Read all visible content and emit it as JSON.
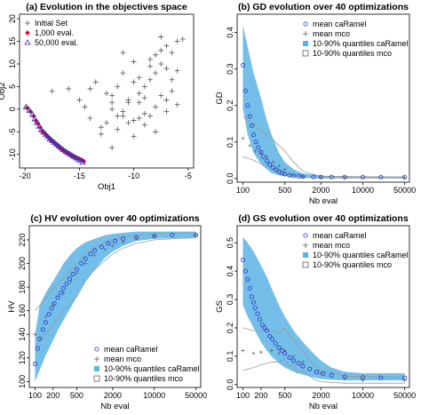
{
  "colors": {
    "band": "#5ab4e5",
    "mean_caramel": "#2233cc",
    "mco": "#666666",
    "init": "#555555",
    "eval1000": "#e8002a",
    "eval50000": "#3333bb"
  },
  "chart_data": [
    {
      "id": "a",
      "type": "scatter",
      "title": "(a) Evolution in the objectives space",
      "xlabel": "Obj1",
      "ylabel": "Obj2",
      "xlim": [
        -20.5,
        -4.5
      ],
      "ylim": [
        -13,
        21
      ],
      "xticks": [
        -20,
        -15,
        -10,
        -5
      ],
      "yticks": [
        -10,
        -5,
        0,
        5,
        10,
        15,
        20
      ],
      "legend_position": "top-left",
      "series": [
        {
          "name": "Initial Set",
          "marker": "plus",
          "x": [
            -17.5,
            -16.0,
            -14.0,
            -13.5,
            -12.5,
            -12.0,
            -11.5,
            -11.0,
            -10.5,
            -10.0,
            -9.5,
            -9.0,
            -8.5,
            -8.0,
            -7.5,
            -7.0,
            -6.5,
            -6.0,
            -5.5,
            -9.0,
            -8.0,
            -7.0,
            -6.5,
            -10.0,
            -11.0,
            -12.0,
            -9.5,
            -8.5,
            -7.5,
            -6.0,
            -13.0,
            -12.5,
            -11.5,
            -10.5,
            -9.0,
            -8.0,
            -7.0,
            -8.5,
            -10.0,
            -11.0,
            -9.5,
            -7.5,
            -6.5,
            -12.0,
            -14.5,
            -15.0,
            -10.0,
            -9.0,
            -8.0,
            -7.0,
            -6.0,
            -8.5,
            -9.5,
            -10.5,
            -11.5,
            -12.0,
            -13.0,
            -14.0,
            -11.0,
            -7.5
          ],
          "y": [
            4.0,
            4.5,
            4.5,
            6.0,
            3.5,
            1.5,
            5.0,
            -0.5,
            2.0,
            6.0,
            3.5,
            2.5,
            9.5,
            8.0,
            10.0,
            9.0,
            12.5,
            15.0,
            15.5,
            -1.0,
            0.5,
            2.0,
            4.0,
            -2.5,
            -1.5,
            0.0,
            7.0,
            11.0,
            13.0,
            8.5,
            -4.0,
            -3.0,
            -4.5,
            1.5,
            5.0,
            12.0,
            14.0,
            6.5,
            10.5,
            8.0,
            -2.0,
            3.0,
            6.5,
            3.0,
            0.5,
            2.0,
            -6.0,
            -3.5,
            -5.0,
            -0.5,
            1.0,
            -1.5,
            1.5,
            -3.0,
            -1.5,
            -8.5,
            -5.5,
            -2.0,
            12.5,
            16.0
          ]
        },
        {
          "name": "1,000 eval.",
          "marker": "diamond",
          "x": [
            -19.8,
            -19.5,
            -19.2,
            -19.0,
            -18.8,
            -18.6,
            -18.4,
            -18.2,
            -18.0,
            -17.8,
            -17.6,
            -17.4,
            -17.2,
            -17.0,
            -16.8,
            -16.6,
            -16.4,
            -16.2,
            -16.0,
            -15.9,
            -15.8,
            -15.6,
            -15.4,
            -15.2,
            -15.0,
            -14.8,
            -14.6
          ],
          "y": [
            0.3,
            -0.5,
            -1.5,
            -2.5,
            -3.2,
            -4.0,
            -4.8,
            -5.3,
            -5.8,
            -6.3,
            -6.8,
            -7.2,
            -7.6,
            -8.0,
            -8.4,
            -8.8,
            -9.2,
            -9.5,
            -9.8,
            -10.0,
            -10.2,
            -10.4,
            -10.6,
            -10.8,
            -11.0,
            -11.2,
            -11.5
          ]
        },
        {
          "name": "50,000 eval.",
          "marker": "triangle",
          "x": [
            -19.9,
            -19.6,
            -19.3,
            -19.1,
            -18.9,
            -18.7,
            -18.5,
            -18.3,
            -18.1,
            -17.9,
            -17.7,
            -17.5,
            -17.3,
            -17.1,
            -16.9,
            -16.7,
            -16.5,
            -16.3,
            -16.1,
            -15.9,
            -15.7,
            -15.5,
            -15.3,
            -15.1,
            -14.9,
            -14.7
          ],
          "y": [
            0.5,
            -0.3,
            -1.2,
            -2.2,
            -3.0,
            -3.8,
            -4.6,
            -5.1,
            -5.6,
            -6.1,
            -6.6,
            -7.0,
            -7.4,
            -7.8,
            -8.2,
            -8.6,
            -9.0,
            -9.3,
            -9.6,
            -9.9,
            -10.2,
            -10.5,
            -10.8,
            -11.1,
            -11.4,
            -11.8
          ]
        }
      ]
    },
    {
      "id": "b",
      "type": "line",
      "title": "(b) GD evolution over 40 optimizations",
      "xlabel": "Nb eval",
      "ylabel": "GD",
      "xscale": "log",
      "xlim": [
        80,
        60000
      ],
      "ylim": [
        -0.01,
        0.45
      ],
      "xticks": [
        100,
        500,
        2000,
        10000,
        50000
      ],
      "yticks": [
        0.0,
        0.1,
        0.2,
        0.3,
        0.4
      ],
      "legend_position": "top-right",
      "series": [
        {
          "name": "mean caRamel",
          "style": "circles",
          "x": [
            100,
            110,
            120,
            130,
            140,
            150,
            165,
            180,
            200,
            220,
            250,
            280,
            320,
            360,
            400,
            450,
            500,
            600,
            700,
            850,
            1000,
            1500,
            2000,
            3000,
            5000,
            10000,
            20000,
            50000
          ],
          "y": [
            0.31,
            0.24,
            0.2,
            0.17,
            0.145,
            0.12,
            0.1,
            0.085,
            0.072,
            0.06,
            0.048,
            0.038,
            0.03,
            0.024,
            0.019,
            0.015,
            0.012,
            0.009,
            0.007,
            0.006,
            0.005,
            0.004,
            0.004,
            0.004,
            0.004,
            0.004,
            0.004,
            0.004
          ]
        },
        {
          "name": "mean mco",
          "style": "plus",
          "x": [
            100,
            130,
            160,
            200,
            250,
            320,
            400,
            500,
            700,
            1000,
            2000,
            5000,
            50000
          ],
          "y": [
            0.11,
            0.09,
            0.075,
            0.07,
            0.06,
            0.045,
            0.035,
            0.025,
            0.012,
            0.006,
            0.003,
            0.002,
            0.002
          ]
        },
        {
          "name": "10-90% quantiles caRamel",
          "style": "band",
          "x": [
            100,
            120,
            150,
            200,
            250,
            300,
            400,
            500,
            700,
            1000,
            2000,
            5000,
            10000,
            50000
          ],
          "low": [
            0.19,
            0.12,
            0.07,
            0.04,
            0.025,
            0.015,
            0.009,
            0.006,
            0.004,
            0.003,
            0.002,
            0.002,
            0.002,
            0.002
          ],
          "high": [
            0.42,
            0.36,
            0.29,
            0.22,
            0.16,
            0.12,
            0.07,
            0.045,
            0.025,
            0.014,
            0.008,
            0.006,
            0.005,
            0.005
          ]
        },
        {
          "name": "10-90% quantiles mco",
          "style": "outline",
          "x": [
            100,
            150,
            200,
            300,
            400,
            500,
            700,
            1000,
            2000,
            50000
          ],
          "low": [
            0.06,
            0.05,
            0.04,
            0.03,
            0.02,
            0.012,
            0.006,
            0.003,
            0.001,
            0.001
          ],
          "high": [
            0.17,
            0.15,
            0.13,
            0.11,
            0.09,
            0.075,
            0.045,
            0.02,
            0.006,
            0.004
          ]
        }
      ]
    },
    {
      "id": "c",
      "type": "line",
      "title": "(c) HV evolution over 40 optimizations",
      "xlabel": "Nb eval",
      "ylabel": "HV",
      "xscale": "log",
      "xlim": [
        80,
        60000
      ],
      "ylim": [
        95,
        232
      ],
      "xticks": [
        100,
        200,
        500,
        2000,
        10000,
        50000
      ],
      "yticks": [
        100,
        120,
        140,
        160,
        180,
        200,
        220
      ],
      "legend_position": "bottom-right",
      "series": [
        {
          "name": "mean caRamel",
          "style": "circles",
          "x": [
            100,
            110,
            120,
            135,
            150,
            170,
            190,
            210,
            240,
            270,
            300,
            340,
            380,
            430,
            500,
            600,
            700,
            850,
            1000,
            1300,
            1700,
            2200,
            3000,
            5000,
            10000,
            20000,
            50000
          ],
          "y": [
            115,
            128,
            136,
            144,
            150,
            157,
            162,
            166,
            171,
            175,
            179,
            183,
            187,
            191,
            195,
            200,
            204,
            208,
            211,
            214,
            217,
            219,
            221,
            222,
            223,
            224,
            224
          ]
        },
        {
          "name": "mean mco",
          "style": "plus",
          "x": [
            100,
            150,
            200,
            300,
            400,
            500,
            700,
            1000,
            1500,
            2000,
            3000,
            5000,
            10000,
            50000
          ],
          "y": [
            140,
            155,
            165,
            175,
            185,
            192,
            200,
            207,
            212,
            215,
            218,
            221,
            223,
            224
          ]
        },
        {
          "name": "10-90% quantiles caRamel",
          "style": "band",
          "x": [
            100,
            120,
            150,
            200,
            250,
            300,
            400,
            500,
            700,
            1000,
            1500,
            2000,
            3000,
            5000,
            10000,
            50000
          ],
          "low": [
            100,
            110,
            122,
            135,
            145,
            152,
            163,
            172,
            185,
            195,
            205,
            210,
            215,
            219,
            221,
            222
          ],
          "high": [
            140,
            165,
            175,
            185,
            193,
            200,
            208,
            213,
            218,
            221,
            224,
            225,
            226,
            227,
            227,
            227
          ]
        },
        {
          "name": "10-90% quantiles mco",
          "style": "outline",
          "x": [
            100,
            150,
            200,
            300,
            500,
            700,
            1000,
            2000,
            3000,
            5000,
            10000,
            50000
          ],
          "low": [
            130,
            140,
            148,
            160,
            172,
            185,
            195,
            208,
            213,
            217,
            220,
            222
          ],
          "high": [
            160,
            170,
            178,
            188,
            200,
            208,
            214,
            220,
            222,
            224,
            225,
            226
          ]
        }
      ]
    },
    {
      "id": "d",
      "type": "line",
      "title": "(d) GS evolution over 40 optimizations",
      "xlabel": "Nb eval",
      "ylabel": "GS",
      "xscale": "log",
      "xlim": [
        80,
        60000
      ],
      "ylim": [
        -0.01,
        0.56
      ],
      "xticks": [
        100,
        200,
        500,
        2000,
        10000,
        50000
      ],
      "yticks": [
        0.0,
        0.1,
        0.2,
        0.3,
        0.4,
        0.5
      ],
      "legend_position": "top-right",
      "series": [
        {
          "name": "mean caRamel",
          "style": "circles",
          "x": [
            100,
            110,
            120,
            130,
            140,
            150,
            160,
            175,
            190,
            210,
            230,
            250,
            280,
            310,
            350,
            400,
            450,
            500,
            600,
            700,
            850,
            1000,
            1300,
            1700,
            2200,
            3000,
            5000,
            10000,
            20000,
            50000
          ],
          "y": [
            0.44,
            0.4,
            0.37,
            0.34,
            0.31,
            0.29,
            0.27,
            0.25,
            0.23,
            0.21,
            0.2,
            0.19,
            0.17,
            0.16,
            0.145,
            0.13,
            0.12,
            0.11,
            0.095,
            0.085,
            0.075,
            0.065,
            0.055,
            0.045,
            0.038,
            0.033,
            0.028,
            0.025,
            0.024,
            0.024
          ]
        },
        {
          "name": "mean mco",
          "style": "plus",
          "x": [
            100,
            150,
            200,
            300,
            400,
            500,
            700,
            1000,
            2000,
            5000,
            10000,
            50000
          ],
          "y": [
            0.12,
            0.11,
            0.115,
            0.12,
            0.11,
            0.12,
            0.1,
            0.08,
            0.04,
            0.02,
            0.015,
            0.015
          ]
        },
        {
          "name": "10-90% quantiles caRamel",
          "style": "band",
          "x": [
            100,
            120,
            150,
            200,
            250,
            300,
            400,
            500,
            700,
            1000,
            1500,
            2000,
            3000,
            5000,
            10000,
            50000
          ],
          "low": [
            0.28,
            0.24,
            0.2,
            0.15,
            0.12,
            0.1,
            0.075,
            0.06,
            0.045,
            0.035,
            0.025,
            0.02,
            0.017,
            0.015,
            0.015,
            0.015
          ],
          "high": [
            0.52,
            0.5,
            0.47,
            0.42,
            0.38,
            0.34,
            0.28,
            0.24,
            0.19,
            0.15,
            0.11,
            0.085,
            0.06,
            0.045,
            0.04,
            0.04
          ]
        },
        {
          "name": "10-90% quantiles mco",
          "style": "outline",
          "x": [
            100,
            150,
            200,
            300,
            400,
            500,
            600,
            700,
            800,
            1000,
            1500,
            2000,
            5000,
            50000
          ],
          "low": [
            0.05,
            0.06,
            0.07,
            0.08,
            0.08,
            0.09,
            0.06,
            0.08,
            0.04,
            0.05,
            0.02,
            0.01,
            0.005,
            0.005
          ],
          "high": [
            0.2,
            0.19,
            0.19,
            0.19,
            0.18,
            0.2,
            0.17,
            0.16,
            0.14,
            0.12,
            0.07,
            0.05,
            0.03,
            0.025
          ]
        }
      ]
    }
  ]
}
